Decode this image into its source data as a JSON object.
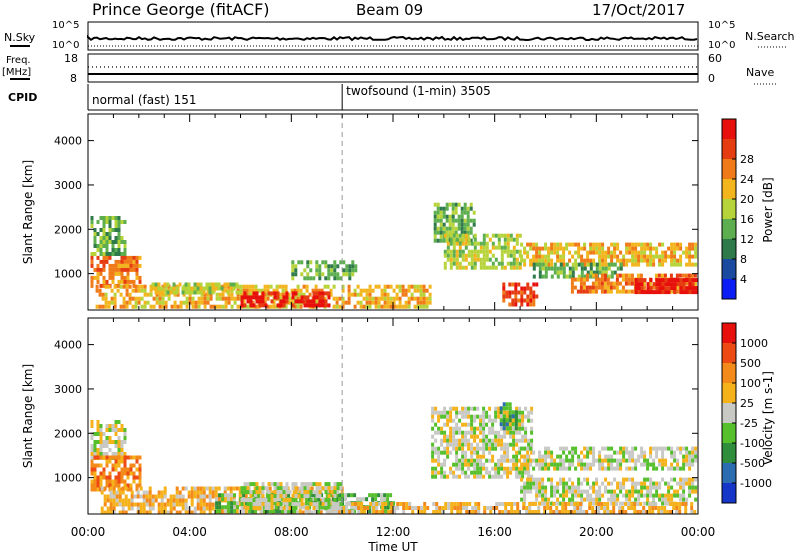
{
  "header": {
    "station": "Prince George (fitACF)",
    "beam": "Beam 09",
    "date": "17/Oct/2017"
  },
  "top_panels": {
    "nsky_label": "N.Sky",
    "nsearch_label": "N.Search",
    "nsky_ticks": [
      "10^5",
      "10^0"
    ],
    "nsearch_ticks": [
      "10^5",
      "10^0"
    ],
    "freq_label": "Freq.",
    "freq_unit": "[MHz]",
    "freq_ticks": [
      "18",
      "8"
    ],
    "nave_label": "Nave",
    "nave_ticks": [
      "60",
      "0"
    ],
    "cpid_label": "CPID",
    "modes": [
      {
        "text": "normal (fast) 151",
        "start_hour": 0
      },
      {
        "text": "twofsound (1-min) 3505",
        "start_hour": 10
      }
    ]
  },
  "x_axis": {
    "label": "Time UT",
    "ticks": [
      "00:00",
      "04:00",
      "08:00",
      "12:00",
      "16:00",
      "20:00",
      "00:00"
    ],
    "range_hours": [
      0,
      24
    ]
  },
  "chart_data": [
    {
      "type": "heatmap",
      "name": "power",
      "ylabel": "Slant Range [km]",
      "yticks": [
        "1000",
        "2000",
        "3000",
        "4000"
      ],
      "ylim": [
        180,
        4600
      ],
      "colorbar": {
        "label": "Power [dB]",
        "tick_labels": [
          "4",
          "8",
          "12",
          "16",
          "20",
          "24",
          "28"
        ],
        "colors": [
          "#0c1cf4",
          "#1a4aa0",
          "#2f7a4a",
          "#5cae4e",
          "#b6d43a",
          "#f3b51e",
          "#f07a18",
          "#e63c12",
          "#e8100c"
        ]
      },
      "regions": [
        {
          "t0": 0.1,
          "t1": 1.4,
          "r0": 1450,
          "r1": 2300,
          "level": 3
        },
        {
          "t0": 0.1,
          "t1": 2.0,
          "r0": 700,
          "r1": 1400,
          "level": 6
        },
        {
          "t0": 0.3,
          "t1": 13.5,
          "r0": 220,
          "r1": 750,
          "level": 5
        },
        {
          "t0": 2.5,
          "t1": 6.0,
          "r0": 600,
          "r1": 800,
          "level": 4
        },
        {
          "t0": 6.0,
          "t1": 9.5,
          "r0": 300,
          "r1": 600,
          "level": 8
        },
        {
          "t0": 8.0,
          "t1": 10.5,
          "r0": 850,
          "r1": 1300,
          "level": 3
        },
        {
          "t0": 13.6,
          "t1": 15.2,
          "r0": 1700,
          "r1": 2600,
          "level": 3
        },
        {
          "t0": 14.0,
          "t1": 17.0,
          "r0": 1100,
          "r1": 1900,
          "level": 4
        },
        {
          "t0": 16.3,
          "t1": 17.6,
          "r0": 300,
          "r1": 800,
          "level": 7
        },
        {
          "t0": 17.0,
          "t1": 23.9,
          "r0": 1200,
          "r1": 1700,
          "level": 5
        },
        {
          "t0": 17.5,
          "t1": 21.0,
          "r0": 900,
          "r1": 1250,
          "level": 3
        },
        {
          "t0": 19.0,
          "t1": 23.9,
          "r0": 550,
          "r1": 1000,
          "level": 6
        },
        {
          "t0": 21.5,
          "t1": 23.9,
          "r0": 600,
          "r1": 900,
          "level": 8
        }
      ]
    },
    {
      "type": "heatmap",
      "name": "velocity",
      "ylabel": "Slant Range [km]",
      "yticks": [
        "1000",
        "2000",
        "3000",
        "4000"
      ],
      "ylim": [
        180,
        4600
      ],
      "colorbar": {
        "label": "Velocity [m s-1]",
        "tick_labels": [
          "1000",
          "500",
          "100",
          "25",
          "-25",
          "-100",
          "-500",
          "-1000"
        ],
        "colors": [
          "#1536c8",
          "#2c6cb0",
          "#2f8e3c",
          "#55c02c",
          "#c8c8c4",
          "#f6b21a",
          "#f48a1a",
          "#ee4a14",
          "#e8100c"
        ]
      },
      "regions": [
        {
          "t0": 0.1,
          "t1": 1.4,
          "r0": 1450,
          "r1": 2300,
          "level": 4
        },
        {
          "t0": 0.1,
          "t1": 2.0,
          "r0": 700,
          "r1": 1500,
          "level": 6
        },
        {
          "t0": 0.5,
          "t1": 10.0,
          "r0": 220,
          "r1": 800,
          "level": 5
        },
        {
          "t0": 5.0,
          "t1": 12.0,
          "r0": 220,
          "r1": 650,
          "level": 3
        },
        {
          "t0": 6.0,
          "t1": 10.0,
          "r0": 300,
          "r1": 900,
          "level": 4
        },
        {
          "t0": 13.5,
          "t1": 17.5,
          "r0": 1000,
          "r1": 2600,
          "level": 4
        },
        {
          "t0": 16.2,
          "t1": 16.8,
          "r0": 2100,
          "r1": 2700,
          "level": 2
        },
        {
          "t0": 17.0,
          "t1": 23.9,
          "r0": 1200,
          "r1": 1700,
          "level": 4
        },
        {
          "t0": 17.0,
          "t1": 23.9,
          "r0": 450,
          "r1": 1000,
          "level": 4
        },
        {
          "t0": 10.0,
          "t1": 23.9,
          "r0": 220,
          "r1": 450,
          "level": 5
        }
      ]
    }
  ]
}
